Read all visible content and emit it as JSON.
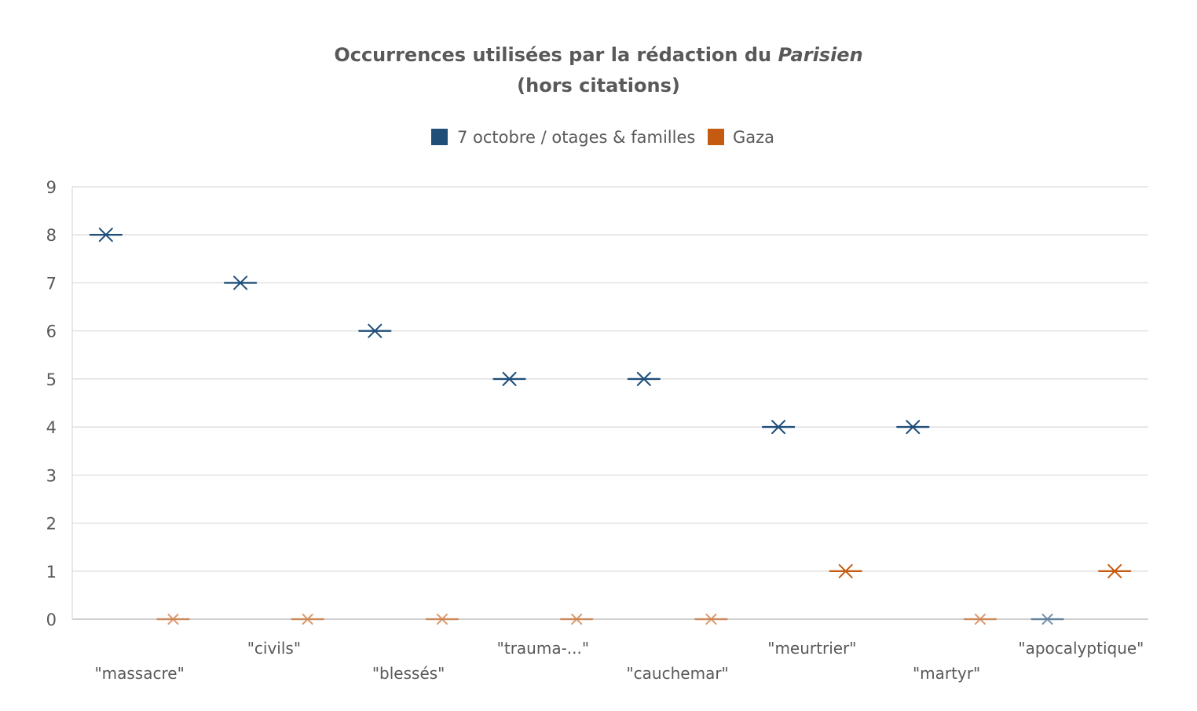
{
  "chart_data": {
    "type": "scatter",
    "title_line1_prefix": "Occurrences utilisées par la rédaction du ",
    "title_line1_italic": "Parisien",
    "title_line2": "(hors citations)",
    "xlabel": "",
    "ylabel": "",
    "ylim": [
      0,
      9
    ],
    "yticks": [
      "0",
      "1",
      "2",
      "3",
      "4",
      "5",
      "6",
      "7",
      "8",
      "9"
    ],
    "grid": true,
    "legend_position": "top",
    "marker": "x-with-dash",
    "categories": [
      "\"massacre\"",
      "\"civils\"",
      "\"blessés\"",
      "\"trauma-...\"",
      "\"cauchemar\"",
      "\"meurtrier\"",
      "\"martyr\"",
      "\"apocalyptique\""
    ],
    "series": [
      {
        "name": "7 octobre / otages & familles",
        "color": "#1F4E79",
        "values": [
          8,
          7,
          6,
          5,
          5,
          4,
          4,
          0
        ]
      },
      {
        "name": "Gaza",
        "color": "#C55A11",
        "values": [
          0,
          0,
          0,
          0,
          0,
          1,
          0,
          1
        ]
      }
    ],
    "colors": {
      "axis": "#BFBFBF",
      "grid": "#D9D9D9",
      "text": "#595959"
    }
  }
}
